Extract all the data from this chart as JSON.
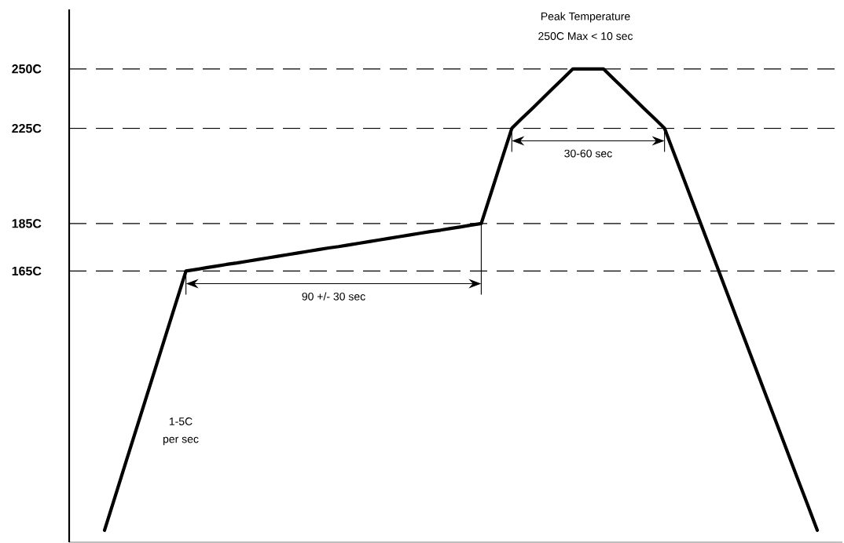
{
  "chart_data": {
    "type": "line",
    "categories": [
      null,
      null,
      null,
      null,
      null,
      null,
      null,
      null,
      null,
      null,
      null,
      null,
      null,
      null,
      null,
      null,
      null,
      null,
      null,
      null,
      null,
      null,
      null,
      null,
      null,
      null,
      null,
      null,
      null,
      null,
      null,
      null,
      null,
      null,
      null,
      null,
      null,
      null,
      null,
      null,
      null,
      null,
      null,
      null,
      null,
      null,
      null,
      null,
      null,
      null,
      null,
      null,
      null,
      null,
      null,
      null,
      null,
      null,
      null,
      null,
      null,
      null,
      null,
      null,
      null,
      null,
      null,
      null,
      null,
      null,
      null,
      null,
      null,
      null,
      null,
      null
    ],
    "values": [
      null,
      null,
      null,
      56,
      69.6,
      83.3,
      96.9,
      110.5,
      124.1,
      137.8,
      151.4,
      165,
      165.7,
      166.4,
      167.1,
      167.8,
      168.4,
      169.1,
      169.8,
      170.5,
      171.2,
      171.9,
      172.6,
      173.3,
      174.0,
      174.7,
      175.3,
      176.0,
      176.7,
      177.4,
      178.1,
      178.8,
      179.5,
      180.2,
      180.9,
      181.6,
      182.2,
      182.9,
      183.6,
      184.3,
      185,
      198.3,
      211.7,
      225,
      229.2,
      233.3,
      237.5,
      241.7,
      245.8,
      250,
      250,
      250,
      250,
      245.8,
      241.7,
      237.5,
      233.3,
      229.2,
      225,
      213.7,
      202.5,
      191.2,
      179.9,
      168.7,
      157.4,
      146.1,
      134.9,
      123.6,
      112.3,
      101.1,
      89.8,
      78.5,
      67.3,
      56,
      null,
      null
    ],
    "color": "#000000",
    "line_style": "solid",
    "marker": "none",
    "ylim": [
      51,
      275
    ],
    "yticks": [
      {
        "value": 165,
        "label": "165C"
      },
      {
        "value": 185,
        "label": "185C"
      },
      {
        "value": 225,
        "label": "225C"
      },
      {
        "value": 250,
        "label": "250C"
      }
    ],
    "tick_labels": "y",
    "ref_lines": [
      {
        "axis": "y",
        "value": 250,
        "line_style": "dashed"
      },
      {
        "axis": "y",
        "value": 225,
        "line_style": "dashed"
      },
      {
        "axis": "y",
        "value": 185,
        "line_style": "dashed"
      },
      {
        "axis": "y",
        "value": 165,
        "line_style": "dashed"
      }
    ],
    "annotations": [
      "Peak Temperature",
      "250C Max < 10 sec",
      {
        "text": "30-60 sec",
        "y": 225
      },
      {
        "text": "90 +/- 30 sec",
        "y": 165
      },
      "1-5C",
      "per sec"
    ]
  }
}
